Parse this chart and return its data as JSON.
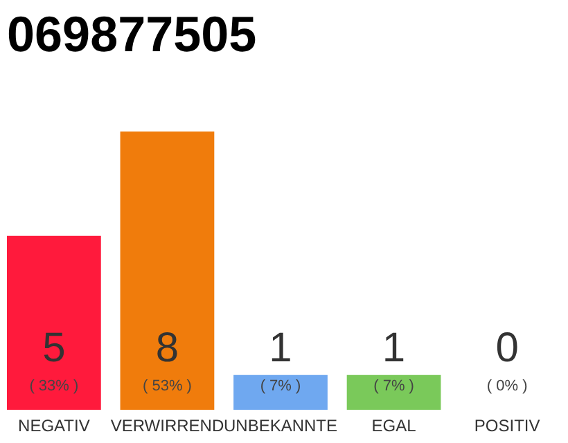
{
  "chart_data": {
    "type": "bar",
    "title": "069877505",
    "categories": [
      "NEGATIV",
      "VERWIRREND",
      "UNBEKANNTE",
      "EGAL",
      "POSITIV"
    ],
    "values": [
      5,
      8,
      1,
      1,
      0
    ],
    "colors": [
      "#ff1a3c",
      "#f07c0c",
      "#6fa8f0",
      "#7ac95a",
      "#cccccc"
    ],
    "ylim": [
      0,
      8
    ],
    "data_labels": true,
    "annotations": [
      "( 33% )",
      "( 53% )",
      "( 7% )",
      "( 7% )",
      "( 0% )"
    ]
  }
}
